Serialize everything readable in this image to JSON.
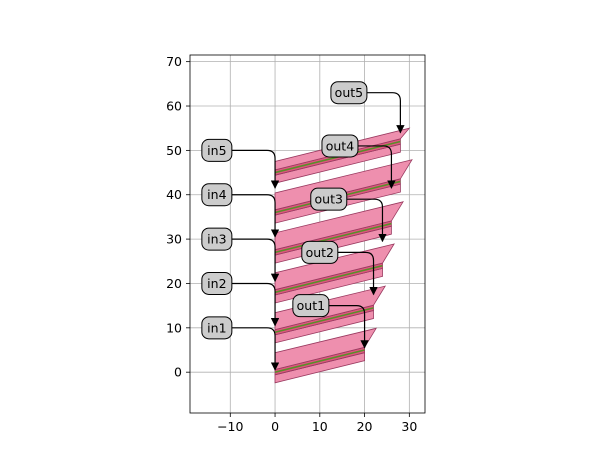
{
  "chart_data": {
    "type": "scatter",
    "xlim": [
      -19,
      33.5
    ],
    "ylim": [
      -9.2,
      71.5
    ],
    "grid": true,
    "x_ticks": [
      -10,
      0,
      10,
      20,
      30
    ],
    "y_ticks": [
      0,
      10,
      20,
      30,
      40,
      50,
      60,
      70
    ],
    "x_tick_labels": [
      "−10",
      "0",
      "10",
      "20",
      "30"
    ],
    "y_tick_labels": [
      "0",
      "10",
      "20",
      "30",
      "40",
      "50",
      "60",
      "70"
    ],
    "waveguides": [
      {
        "light": [
          [
            0,
            -2.4
          ],
          [
            20,
            2.6
          ],
          [
            20,
            4.4
          ],
          [
            0,
            -0.6
          ]
        ],
        "dark": [
          [
            0,
            -0.6
          ],
          [
            20,
            4.4
          ],
          [
            20,
            5.6
          ],
          [
            0,
            0.6
          ]
        ],
        "core": [
          [
            0,
            0
          ],
          [
            20,
            5
          ]
        ],
        "cladding": [
          [
            0,
            0.6
          ],
          [
            20,
            5.6
          ],
          [
            22.6,
            9.9
          ],
          [
            0,
            4.4
          ]
        ]
      },
      {
        "light": [
          [
            0,
            6.6
          ],
          [
            22,
            12.1
          ],
          [
            22,
            13.9
          ],
          [
            0,
            8.4
          ]
        ],
        "dark": [
          [
            0,
            8.4
          ],
          [
            22,
            13.9
          ],
          [
            22,
            15.1
          ],
          [
            0,
            9.6
          ]
        ],
        "core": [
          [
            0,
            9
          ],
          [
            22,
            14.5
          ]
        ],
        "cladding": [
          [
            0,
            9.6
          ],
          [
            22,
            15.1
          ],
          [
            24.6,
            19.4
          ],
          [
            0,
            13.4
          ]
        ]
      },
      {
        "light": [
          [
            0,
            15.6
          ],
          [
            24,
            21.6
          ],
          [
            24,
            23.4
          ],
          [
            0,
            17.4
          ]
        ],
        "dark": [
          [
            0,
            17.4
          ],
          [
            24,
            23.4
          ],
          [
            24,
            24.6
          ],
          [
            0,
            18.6
          ]
        ],
        "core": [
          [
            0,
            18
          ],
          [
            24,
            24
          ]
        ],
        "cladding": [
          [
            0,
            18.6
          ],
          [
            24,
            24.6
          ],
          [
            26.6,
            28.9
          ],
          [
            0,
            22.4
          ]
        ]
      },
      {
        "light": [
          [
            0,
            24.6
          ],
          [
            26,
            31.1
          ],
          [
            26,
            32.9
          ],
          [
            0,
            26.4
          ]
        ],
        "dark": [
          [
            0,
            26.4
          ],
          [
            26,
            32.9
          ],
          [
            26,
            34.1
          ],
          [
            0,
            27.6
          ]
        ],
        "core": [
          [
            0,
            27
          ],
          [
            26,
            33.5
          ]
        ],
        "cladding": [
          [
            0,
            27.6
          ],
          [
            26,
            34.1
          ],
          [
            28.6,
            38.4
          ],
          [
            0,
            31.4
          ]
        ]
      },
      {
        "light": [
          [
            0,
            33.6
          ],
          [
            28,
            40.6
          ],
          [
            28,
            42.4
          ],
          [
            0,
            35.4
          ]
        ],
        "dark": [
          [
            0,
            35.4
          ],
          [
            28,
            42.4
          ],
          [
            28,
            43.6
          ],
          [
            0,
            36.6
          ]
        ],
        "core": [
          [
            0,
            36
          ],
          [
            28,
            43
          ]
        ],
        "cladding": [
          [
            0,
            36.6
          ],
          [
            28,
            43.6
          ],
          [
            30.6,
            47.9
          ],
          [
            0,
            40.4
          ]
        ]
      },
      {
        "light": [
          [
            0,
            42.6
          ],
          [
            28,
            49.6
          ],
          [
            28,
            51.4
          ],
          [
            0,
            44.4
          ]
        ],
        "dark": [
          [
            0,
            44.4
          ],
          [
            28,
            51.4
          ],
          [
            28,
            52.6
          ],
          [
            0,
            45.6
          ]
        ],
        "core": [
          [
            0,
            45
          ],
          [
            28,
            52
          ]
        ],
        "cladding": [
          [
            0,
            45.6
          ],
          [
            28,
            52.6
          ],
          [
            30,
            55
          ],
          [
            0,
            47.5
          ]
        ]
      }
    ],
    "ports": [
      {
        "label": "in1",
        "label_at": [
          -13,
          10
        ],
        "target": [
          0,
          0.5
        ]
      },
      {
        "label": "in2",
        "label_at": [
          -13,
          20
        ],
        "target": [
          0,
          10.5
        ]
      },
      {
        "label": "in3",
        "label_at": [
          -13,
          30
        ],
        "target": [
          0,
          20.5
        ]
      },
      {
        "label": "in4",
        "label_at": [
          -13,
          40
        ],
        "target": [
          0,
          30.5
        ]
      },
      {
        "label": "in5",
        "label_at": [
          -13,
          50
        ],
        "target": [
          0,
          41.5
        ]
      },
      {
        "label": "out1",
        "label_at": [
          8,
          15
        ],
        "target": [
          20,
          5.5
        ]
      },
      {
        "label": "out2",
        "label_at": [
          10,
          27
        ],
        "target": [
          22,
          17.5
        ]
      },
      {
        "label": "out3",
        "label_at": [
          12,
          39
        ],
        "target": [
          24,
          29.5
        ]
      },
      {
        "label": "out4",
        "label_at": [
          14.5,
          51
        ],
        "target": [
          26,
          41.5
        ]
      },
      {
        "label": "out5",
        "label_at": [
          16.5,
          63
        ],
        "target": [
          28,
          54
        ]
      }
    ],
    "colors": {
      "light_fill": "#ee8fae",
      "dark_fill": "#dd577e",
      "core_line": "#5a8e2a",
      "edge": "#9a3a60",
      "label_box": "#cccccc",
      "grid": "#b0b0b0"
    }
  }
}
